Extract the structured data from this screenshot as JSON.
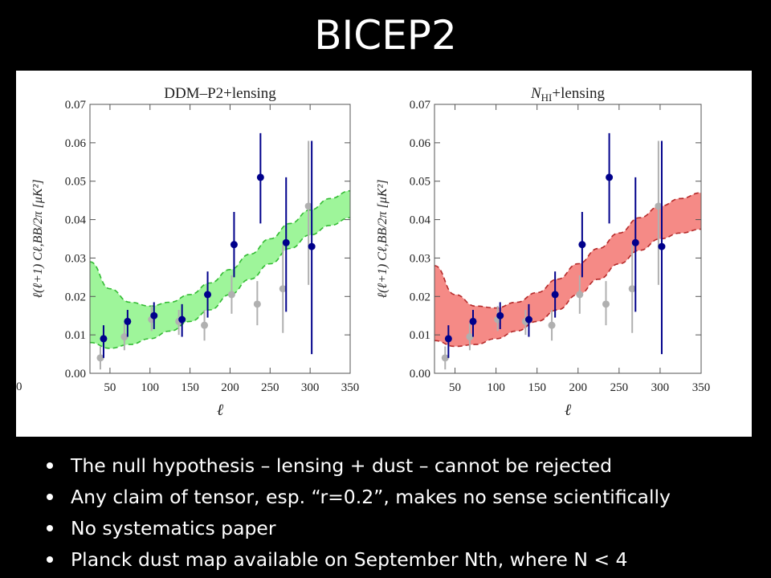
{
  "slide": {
    "title": "BICEP2",
    "bullets": [
      "The null hypothesis – lensing + dust –  cannot be rejected",
      "Any claim of tensor,  esp. “r=0.2”, makes no sense scientifically",
      "No systematics paper",
      "Planck dust map available on September Nth, where N < 4"
    ]
  },
  "figure": {
    "stray_tick": "0"
  },
  "chart_data": [
    {
      "type": "scatter",
      "title": "DDM–P2+lensing",
      "xlabel": "ℓ",
      "ylabel": "ℓ(ℓ+1) Cℓ,BB/2π [μK²]",
      "xlim": [
        25,
        350
      ],
      "ylim": [
        0,
        0.07
      ],
      "xticks": [
        50,
        100,
        150,
        200,
        250,
        300,
        350
      ],
      "yticks": [
        "0.00",
        "0.01",
        "0.02",
        "0.03",
        "0.04",
        "0.05",
        "0.06",
        "0.07"
      ],
      "band": {
        "color": "#9ef59a",
        "edge": "#33bb33",
        "x": [
          25,
          50,
          75,
          100,
          125,
          150,
          175,
          200,
          225,
          250,
          275,
          300,
          325,
          350
        ],
        "upper": [
          0.029,
          0.022,
          0.0185,
          0.0175,
          0.0185,
          0.0205,
          0.0235,
          0.027,
          0.031,
          0.035,
          0.039,
          0.0425,
          0.0455,
          0.0475
        ],
        "lower": [
          0.008,
          0.0065,
          0.0075,
          0.009,
          0.011,
          0.0135,
          0.0165,
          0.0205,
          0.0245,
          0.0285,
          0.0325,
          0.036,
          0.0385,
          0.0405
        ]
      },
      "series": [
        {
          "color": "#00008b",
          "points": [
            {
              "x": 42,
              "y": 0.009,
              "lo": 0.004,
              "hi": 0.0125
            },
            {
              "x": 72,
              "y": 0.0135,
              "lo": 0.0095,
              "hi": 0.0165
            },
            {
              "x": 105,
              "y": 0.015,
              "lo": 0.0115,
              "hi": 0.0185
            },
            {
              "x": 140,
              "y": 0.014,
              "lo": 0.0095,
              "hi": 0.018
            },
            {
              "x": 172,
              "y": 0.0205,
              "lo": 0.0145,
              "hi": 0.0265
            },
            {
              "x": 205,
              "y": 0.0335,
              "lo": 0.025,
              "hi": 0.042
            },
            {
              "x": 238,
              "y": 0.051,
              "lo": 0.039,
              "hi": 0.0625
            },
            {
              "x": 270,
              "y": 0.034,
              "lo": 0.016,
              "hi": 0.051
            },
            {
              "x": 302,
              "y": 0.033,
              "lo": 0.005,
              "hi": 0.0605
            }
          ]
        },
        {
          "color": "#b0b0b0",
          "points": [
            {
              "x": 38,
              "y": 0.004,
              "lo": 0.001,
              "hi": 0.007
            },
            {
              "x": 68,
              "y": 0.0095,
              "lo": 0.006,
              "hi": 0.013
            },
            {
              "x": 102,
              "y": 0.014,
              "lo": 0.011,
              "hi": 0.0175
            },
            {
              "x": 136,
              "y": 0.0135,
              "lo": 0.01,
              "hi": 0.0165
            },
            {
              "x": 168,
              "y": 0.0125,
              "lo": 0.0085,
              "hi": 0.0165
            },
            {
              "x": 202,
              "y": 0.0205,
              "lo": 0.0155,
              "hi": 0.0255
            },
            {
              "x": 234,
              "y": 0.018,
              "lo": 0.0125,
              "hi": 0.024
            },
            {
              "x": 266,
              "y": 0.022,
              "lo": 0.0105,
              "hi": 0.0335
            },
            {
              "x": 298,
              "y": 0.0435,
              "lo": 0.023,
              "hi": 0.0605
            }
          ]
        }
      ]
    },
    {
      "type": "scatter",
      "title": "N_HI+lensing",
      "title_main": "N",
      "title_sub": "HI",
      "title_rest": "+lensing",
      "xlabel": "ℓ",
      "ylabel": "ℓ(ℓ+1) Cℓ,BB/2π [μK²]",
      "xlim": [
        25,
        350
      ],
      "ylim": [
        0,
        0.07
      ],
      "xticks": [
        50,
        100,
        150,
        200,
        250,
        300,
        350
      ],
      "yticks": [
        "0.00",
        "0.01",
        "0.02",
        "0.03",
        "0.04",
        "0.05",
        "0.06",
        "0.07"
      ],
      "band": {
        "color": "#f58a86",
        "edge": "#b52a2a",
        "x": [
          25,
          50,
          75,
          100,
          125,
          150,
          175,
          200,
          225,
          250,
          275,
          300,
          325,
          350
        ],
        "upper": [
          0.028,
          0.0205,
          0.0175,
          0.017,
          0.0185,
          0.021,
          0.0245,
          0.0285,
          0.0325,
          0.0365,
          0.0405,
          0.0435,
          0.0455,
          0.047
        ],
        "lower": [
          0.0085,
          0.007,
          0.0075,
          0.009,
          0.011,
          0.0135,
          0.0165,
          0.0205,
          0.0245,
          0.0285,
          0.032,
          0.035,
          0.0365,
          0.0375
        ]
      },
      "series": [
        {
          "color": "#00008b",
          "points": [
            {
              "x": 42,
              "y": 0.009,
              "lo": 0.004,
              "hi": 0.0125
            },
            {
              "x": 72,
              "y": 0.0135,
              "lo": 0.0095,
              "hi": 0.0165
            },
            {
              "x": 105,
              "y": 0.015,
              "lo": 0.0115,
              "hi": 0.0185
            },
            {
              "x": 140,
              "y": 0.014,
              "lo": 0.0095,
              "hi": 0.018
            },
            {
              "x": 172,
              "y": 0.0205,
              "lo": 0.0145,
              "hi": 0.0265
            },
            {
              "x": 205,
              "y": 0.0335,
              "lo": 0.025,
              "hi": 0.042
            },
            {
              "x": 238,
              "y": 0.051,
              "lo": 0.039,
              "hi": 0.0625
            },
            {
              "x": 270,
              "y": 0.034,
              "lo": 0.016,
              "hi": 0.051
            },
            {
              "x": 302,
              "y": 0.033,
              "lo": 0.005,
              "hi": 0.0605
            }
          ]
        },
        {
          "color": "#b0b0b0",
          "points": [
            {
              "x": 38,
              "y": 0.004,
              "lo": 0.001,
              "hi": 0.007
            },
            {
              "x": 68,
              "y": 0.0095,
              "lo": 0.006,
              "hi": 0.013
            },
            {
              "x": 102,
              "y": 0.014,
              "lo": 0.011,
              "hi": 0.0175
            },
            {
              "x": 136,
              "y": 0.0135,
              "lo": 0.01,
              "hi": 0.0165
            },
            {
              "x": 168,
              "y": 0.0125,
              "lo": 0.0085,
              "hi": 0.0165
            },
            {
              "x": 202,
              "y": 0.0205,
              "lo": 0.0155,
              "hi": 0.0255
            },
            {
              "x": 234,
              "y": 0.018,
              "lo": 0.0125,
              "hi": 0.024
            },
            {
              "x": 266,
              "y": 0.022,
              "lo": 0.0105,
              "hi": 0.0335
            },
            {
              "x": 298,
              "y": 0.0435,
              "lo": 0.023,
              "hi": 0.0605
            }
          ]
        }
      ]
    }
  ]
}
